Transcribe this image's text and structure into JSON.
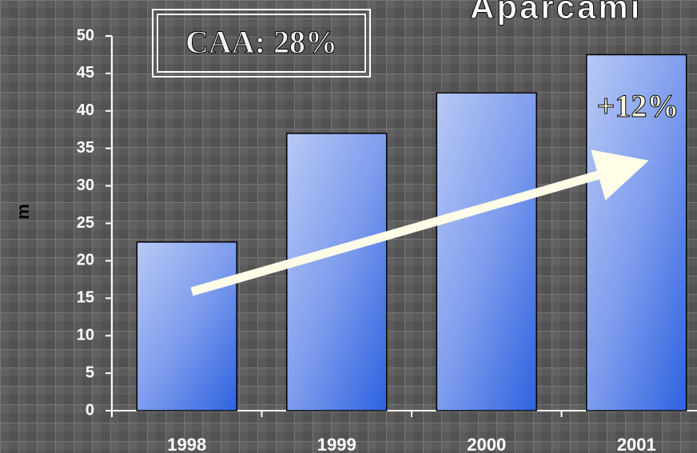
{
  "chart_data": {
    "type": "bar",
    "title": "Aparcami",
    "y_label": "m",
    "annotations": [
      "CAA: 28%",
      "+12%"
    ],
    "categories": [
      "1998",
      "1999",
      "2000",
      "2001"
    ],
    "values": [
      22.5,
      37,
      42.4,
      47.5
    ],
    "color": "#3f6fe0",
    "ylim": [
      0,
      50
    ],
    "yticks": [
      0,
      5,
      10,
      15,
      20,
      25,
      30,
      35,
      40,
      45,
      50
    ],
    "grid": false
  }
}
